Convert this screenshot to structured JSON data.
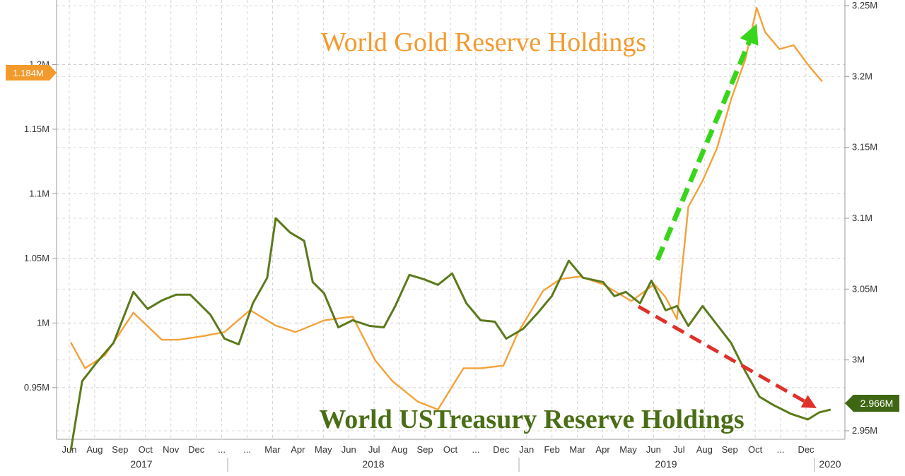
{
  "chart_data": {
    "type": "line",
    "title": "World Gold Reserve Holdings",
    "subtitle": "World USTreasury Reserve Holdings",
    "x_month_labels": [
      "Jun",
      "Aug",
      "Sep",
      "Oct",
      "Nov",
      "Dec",
      "...",
      "...",
      "Mar",
      "Apr",
      "May",
      "Jun",
      "Jul",
      "Aug",
      "Sep",
      "Oct",
      "...",
      "Dec",
      "Jan",
      "Feb",
      "Mar",
      "Apr",
      "May",
      "Jun",
      "Jul",
      "Aug",
      "Sep",
      "Oct",
      "...",
      "Dec"
    ],
    "x_year_labels": [
      "2017",
      "2018",
      "2019",
      "2020"
    ],
    "left_axis": {
      "ticks": [
        "1.2M",
        "1.15M",
        "1.1M",
        "1.05M",
        "1M",
        "0.95M"
      ],
      "ylim": [
        0.91,
        1.25
      ],
      "current_value_label": "1.184M",
      "units": "M"
    },
    "right_axis": {
      "ticks": [
        "3.25M",
        "3.2M",
        "3.15M",
        "3.1M",
        "3.05M",
        "3M",
        "2.95M"
      ],
      "ylim": [
        2.944,
        3.254
      ],
      "current_value_label": "2.966M",
      "units": "M"
    },
    "series": [
      {
        "name": "World Gold Reserve Holdings",
        "axis": "left",
        "color": "#f2a23a",
        "x": [
          2017.33,
          2017.38,
          2017.45,
          2017.55,
          2017.65,
          2017.71,
          2017.8,
          2017.87,
          2017.96,
          2018.05,
          2018.12,
          2018.22,
          2018.32,
          2018.4,
          2018.46,
          2018.55,
          2018.62,
          2018.71,
          2018.77,
          2018.85,
          2018.9,
          2018.99,
          2019.05,
          2019.12,
          2019.2,
          2019.3,
          2019.38,
          2019.42,
          2019.46,
          2019.5,
          2019.55,
          2019.6,
          2019.65,
          2019.7,
          2019.74,
          2019.77,
          2019.82,
          2019.87,
          2019.92,
          2019.97
        ],
        "values": [
          0.985,
          0.965,
          0.975,
          1.008,
          0.987,
          0.987,
          0.99,
          0.993,
          1.01,
          0.998,
          0.993,
          1.002,
          1.005,
          0.971,
          0.955,
          0.939,
          0.933,
          0.965,
          0.965,
          0.967,
          0.992,
          1.025,
          1.034,
          1.036,
          1.03,
          1.017,
          1.03,
          1.02,
          1.003,
          1.09,
          1.11,
          1.135,
          1.173,
          1.204,
          1.244,
          1.225,
          1.212,
          1.215,
          1.2,
          1.187
        ]
      },
      {
        "name": "World USTreasury Reserve Holdings",
        "axis": "right",
        "color": "#5b7a1b",
        "x": [
          2017.33,
          2017.37,
          2017.42,
          2017.48,
          2017.55,
          2017.6,
          2017.65,
          2017.7,
          2017.75,
          2017.82,
          2017.87,
          2017.92,
          2017.97,
          2018.02,
          2018.05,
          2018.1,
          2018.15,
          2018.18,
          2018.22,
          2018.27,
          2018.32,
          2018.38,
          2018.43,
          2018.47,
          2018.52,
          2018.57,
          2018.62,
          2018.67,
          2018.72,
          2018.77,
          2018.82,
          2018.86,
          2018.92,
          2018.97,
          2019.02,
          2019.08,
          2019.13,
          2019.2,
          2019.24,
          2019.28,
          2019.33,
          2019.37,
          2019.42,
          2019.46,
          2019.5,
          2019.55,
          2019.6,
          2019.65,
          2019.7,
          2019.75,
          2019.8,
          2019.86,
          2019.92,
          2019.96,
          2020.0
        ],
        "values": [
          2.936,
          2.985,
          2.998,
          3.012,
          3.048,
          3.036,
          3.042,
          3.046,
          3.046,
          3.032,
          3.015,
          3.011,
          3.04,
          3.058,
          3.1,
          3.09,
          3.084,
          3.055,
          3.047,
          3.023,
          3.028,
          3.024,
          3.023,
          3.038,
          3.06,
          3.057,
          3.053,
          3.061,
          3.04,
          3.028,
          3.027,
          3.015,
          3.022,
          3.033,
          3.045,
          3.07,
          3.058,
          3.055,
          3.045,
          3.048,
          3.04,
          3.056,
          3.035,
          3.038,
          3.024,
          3.038,
          3.025,
          3.012,
          2.992,
          2.974,
          2.968,
          2.962,
          2.958,
          2.963,
          2.965
        ]
      }
    ],
    "annotations": [
      {
        "type": "arrow",
        "color": "#38d61b",
        "meaning": "gold holdings rising"
      },
      {
        "type": "arrow",
        "color": "#e0302a",
        "meaning": "treasury holdings falling"
      }
    ]
  }
}
